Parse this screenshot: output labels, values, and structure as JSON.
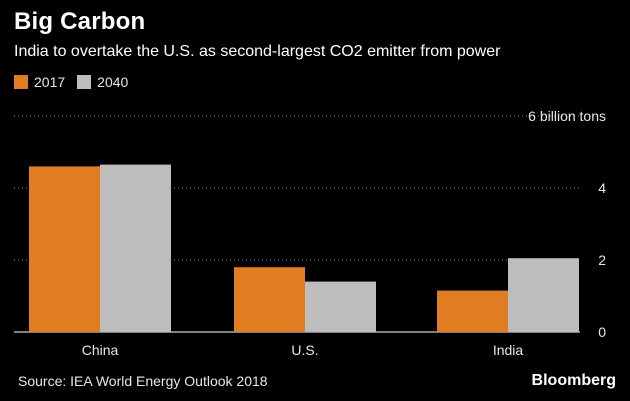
{
  "header": {
    "title": "Big Carbon",
    "subtitle": "India to overtake the U.S. as second-largest CO2 emitter from power"
  },
  "legend": [
    {
      "label": "2017",
      "color": "#e07c22"
    },
    {
      "label": "2040",
      "color": "#bdbdbd"
    }
  ],
  "footer": {
    "source": "Source: IEA World Energy Outlook 2018",
    "brand": "Bloomberg"
  },
  "chart_data": {
    "type": "bar",
    "title": "Big Carbon",
    "subtitle": "India to overtake the U.S. as second-largest CO2 emitter from power",
    "categories": [
      "China",
      "U.S.",
      "India"
    ],
    "series": [
      {
        "name": "2017",
        "values": [
          4.6,
          1.8,
          1.15
        ],
        "color": "#e07c22"
      },
      {
        "name": "2040",
        "values": [
          4.65,
          1.4,
          2.05
        ],
        "color": "#bdbdbd"
      }
    ],
    "yticks": [
      0,
      2,
      4,
      6
    ],
    "ytick_labels": [
      "0",
      "2",
      "4",
      "6 billion tons"
    ],
    "ylim": [
      0,
      6
    ],
    "xlabel": "",
    "ylabel": "",
    "legend_position": "top-left"
  }
}
